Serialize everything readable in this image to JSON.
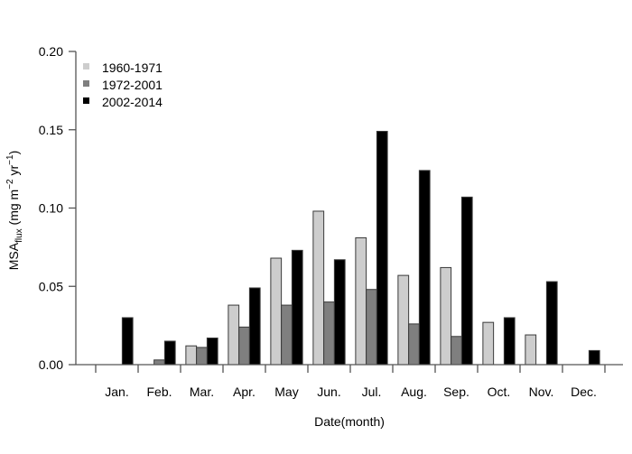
{
  "chart_data": {
    "type": "bar",
    "title": "",
    "xlabel": "Date(month)",
    "ylabel": {
      "prefix": "MSA",
      "subscript": "flux",
      "units_open": " (mg m",
      "units_exp1": "−2",
      "units_mid": " yr",
      "units_exp2": "−1",
      "units_close": ")"
    },
    "ylim": [
      0,
      0.2
    ],
    "yticks": [
      0.0,
      0.05,
      0.1,
      0.15,
      0.2
    ],
    "ytick_labels": [
      "0.00",
      "0.05",
      "0.10",
      "0.15",
      "0.20"
    ],
    "grid": false,
    "legend_position": "top-left",
    "categories": [
      "Jan.",
      "Feb.",
      "Mar.",
      "Apr.",
      "May",
      "Jun.",
      "Jul.",
      "Aug.",
      "Sep.",
      "Oct.",
      "Nov.",
      "Dec."
    ],
    "series": [
      {
        "name": "1960-1971",
        "color": "#cdcdcd",
        "values": [
          0.0,
          0.0,
          0.012,
          0.038,
          0.068,
          0.098,
          0.081,
          0.057,
          0.062,
          0.027,
          0.019,
          0.0
        ]
      },
      {
        "name": "1972-2001",
        "color": "#7f7f7f",
        "values": [
          0.0,
          0.003,
          0.011,
          0.024,
          0.038,
          0.04,
          0.048,
          0.026,
          0.018,
          0.0,
          0.0,
          0.0
        ]
      },
      {
        "name": "2002-2014",
        "color": "#000000",
        "values": [
          0.03,
          0.015,
          0.017,
          0.049,
          0.073,
          0.067,
          0.149,
          0.124,
          0.107,
          0.03,
          0.053,
          0.009
        ]
      }
    ]
  }
}
